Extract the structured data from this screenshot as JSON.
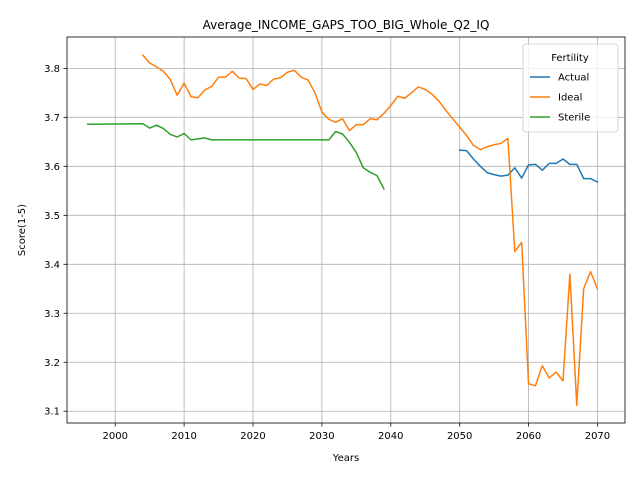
{
  "chart_data": {
    "type": "line",
    "title": "Average_INCOME_GAPS_TOO_BIG_Whole_Q2_IQ",
    "xlabel": "Years",
    "ylabel": "Score(1-5)",
    "xlim": [
      1993,
      2074
    ],
    "ylim": [
      3.076,
      3.864
    ],
    "xticks": [
      2000,
      2010,
      2020,
      2030,
      2040,
      2050,
      2060,
      2070
    ],
    "yticks": [
      3.1,
      3.2,
      3.3,
      3.4,
      3.5,
      3.6,
      3.7,
      3.8
    ],
    "ytick_labels": [
      "3.1",
      "3.2",
      "3.3",
      "3.4",
      "3.5",
      "3.6",
      "3.7",
      "3.8"
    ],
    "grid": true,
    "legend": {
      "title": "Fertility",
      "position": "top-right"
    },
    "series": [
      {
        "name": "Actual",
        "color": "#1f77b4",
        "x": [
          2050,
          2051,
          2052,
          2053,
          2054,
          2055,
          2056,
          2057,
          2058,
          2059,
          2060,
          2061,
          2062,
          2063,
          2064,
          2065,
          2066,
          2067,
          2068,
          2069,
          2070
        ],
        "y": [
          3.633,
          3.632,
          3.615,
          3.6,
          3.587,
          3.583,
          3.58,
          3.582,
          3.597,
          3.576,
          3.603,
          3.604,
          3.592,
          3.606,
          3.606,
          3.615,
          3.604,
          3.604,
          3.575,
          3.575,
          3.568
        ]
      },
      {
        "name": "Ideal",
        "color": "#ff7f0e",
        "x": [
          2004,
          2005,
          2006,
          2007,
          2008,
          2009,
          2010,
          2011,
          2012,
          2013,
          2014,
          2015,
          2016,
          2017,
          2018,
          2019,
          2020,
          2021,
          2022,
          2023,
          2024,
          2025,
          2026,
          2027,
          2028,
          2029,
          2030,
          2031,
          2032,
          2033,
          2034,
          2035,
          2036,
          2037,
          2038,
          2039,
          2040,
          2041,
          2042,
          2043,
          2044,
          2045,
          2046,
          2047,
          2048,
          2049,
          2050,
          2051,
          2052,
          2053,
          2054,
          2055,
          2056,
          2057,
          2058,
          2059,
          2060,
          2061,
          2062,
          2063,
          2064,
          2065,
          2066,
          2067,
          2068,
          2069,
          2070
        ],
        "y": [
          3.827,
          3.811,
          3.803,
          3.794,
          3.777,
          3.745,
          3.77,
          3.742,
          3.74,
          3.756,
          3.763,
          3.782,
          3.782,
          3.794,
          3.78,
          3.779,
          3.757,
          3.768,
          3.765,
          3.778,
          3.781,
          3.792,
          3.796,
          3.782,
          3.776,
          3.75,
          3.711,
          3.696,
          3.69,
          3.697,
          3.673,
          3.685,
          3.685,
          3.697,
          3.695,
          3.708,
          3.724,
          3.743,
          3.739,
          3.75,
          3.762,
          3.757,
          3.747,
          3.733,
          3.714,
          3.697,
          3.68,
          3.663,
          3.643,
          3.634,
          3.64,
          3.644,
          3.647,
          3.657,
          3.426,
          3.445,
          3.156,
          3.152,
          3.193,
          3.168,
          3.18,
          3.162,
          3.38,
          3.112,
          3.35,
          3.385,
          3.35
        ]
      },
      {
        "name": "Sterile",
        "color": "#2ca02c",
        "x": [
          1996,
          2004,
          2005,
          2006,
          2007,
          2008,
          2009,
          2010,
          2011,
          2012,
          2013,
          2014,
          2015,
          2016,
          2017,
          2018,
          2019,
          2020,
          2021,
          2022,
          2023,
          2024,
          2025,
          2026,
          2027,
          2028,
          2029,
          2030,
          2031,
          2032,
          2033,
          2034,
          2035,
          2036,
          2037,
          2038,
          2039
        ],
        "y": [
          3.686,
          3.687,
          3.678,
          3.684,
          3.677,
          3.665,
          3.66,
          3.667,
          3.654,
          3.656,
          3.658,
          3.654,
          3.654,
          3.654,
          3.654,
          3.654,
          3.654,
          3.654,
          3.654,
          3.654,
          3.654,
          3.654,
          3.654,
          3.654,
          3.654,
          3.654,
          3.654,
          3.654,
          3.654,
          3.671,
          3.666,
          3.649,
          3.628,
          3.597,
          3.588,
          3.581,
          3.554
        ]
      }
    ]
  }
}
